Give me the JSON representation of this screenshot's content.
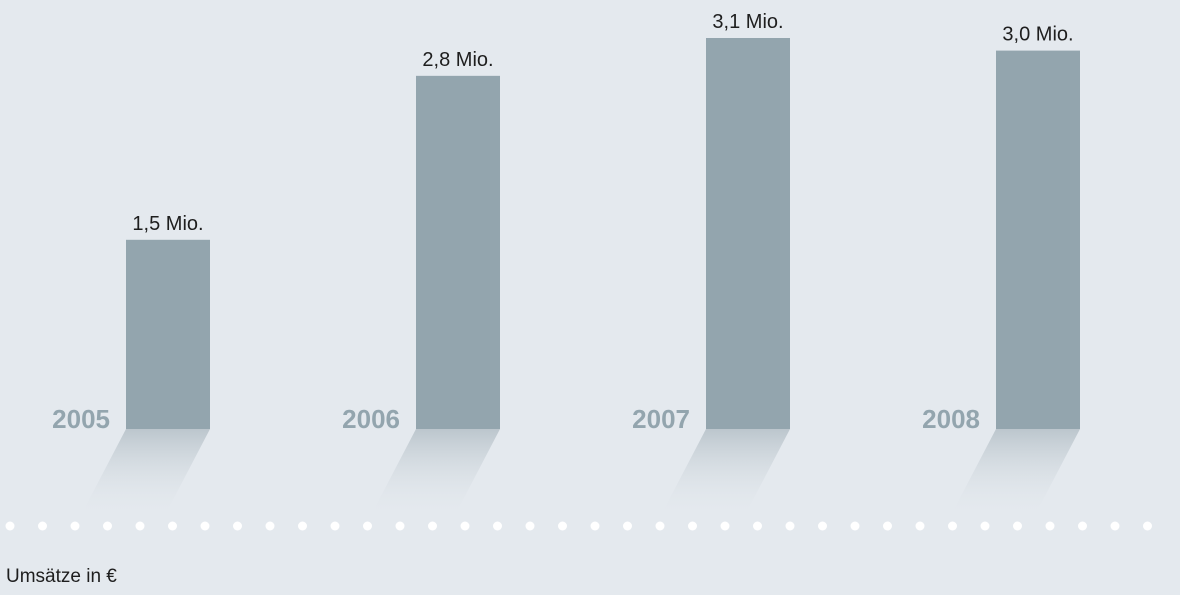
{
  "caption": "Umsätze in €",
  "colors": {
    "background": "#e4e9ee",
    "bar": "#93a5ae",
    "year_label": "#93a5ae",
    "value_label": "#1e1e1e",
    "dots": "#ffffff"
  },
  "chart_data": {
    "type": "bar",
    "title": "",
    "xlabel": "",
    "ylabel": "",
    "categories": [
      "2005",
      "2006",
      "2007",
      "2008"
    ],
    "values": [
      1.5,
      2.8,
      3.1,
      3.0
    ],
    "value_labels": [
      "1,5 Mio.",
      "2,8 Mio.",
      "3,1 Mio.",
      "3,0 Mio."
    ],
    "unit": "Mio. €",
    "ylim": [
      0,
      3.1
    ],
    "grid": false,
    "legend": "none"
  }
}
